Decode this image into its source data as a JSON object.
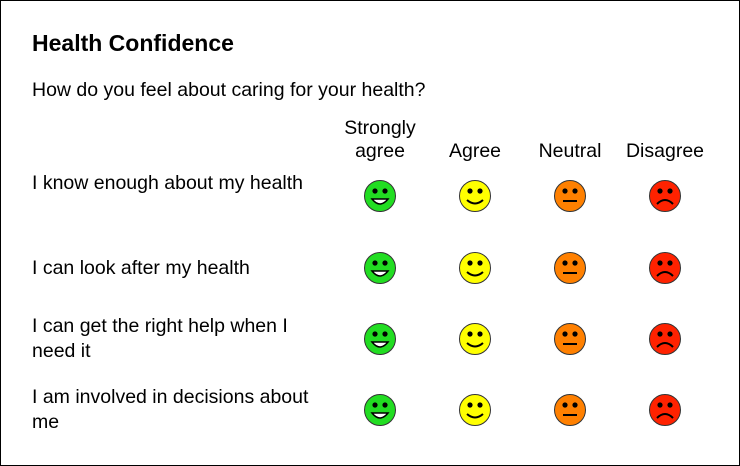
{
  "title": "Health Confidence",
  "question": "How do you feel about caring for your health?",
  "columns": [
    {
      "label": "Strongly agree",
      "face": "big-smile-face-icon",
      "color": "#22dd22"
    },
    {
      "label": "Agree",
      "face": "smile-face-icon",
      "color": "#ffff00"
    },
    {
      "label": "Neutral",
      "face": "neutral-face-icon",
      "color": "#ff8000"
    },
    {
      "label": "Disagree",
      "face": "frown-face-icon",
      "color": "#ff2200"
    }
  ],
  "rows": [
    {
      "label": "I know enough about my health"
    },
    {
      "label": "I can look after my health"
    },
    {
      "label": "I can get the right help when I need it"
    },
    {
      "label": "I am involved in decisions about me"
    }
  ]
}
